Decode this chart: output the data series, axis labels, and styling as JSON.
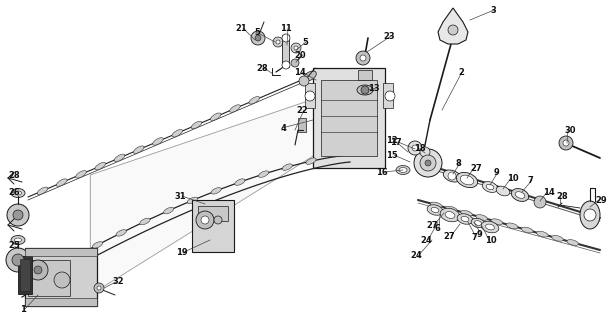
{
  "bg_color": "#ffffff",
  "line_color": "#1a1a1a",
  "label_color": "#111111",
  "figsize": [
    6.12,
    3.2
  ],
  "dpi": 100,
  "label_fontsize": 6.0
}
